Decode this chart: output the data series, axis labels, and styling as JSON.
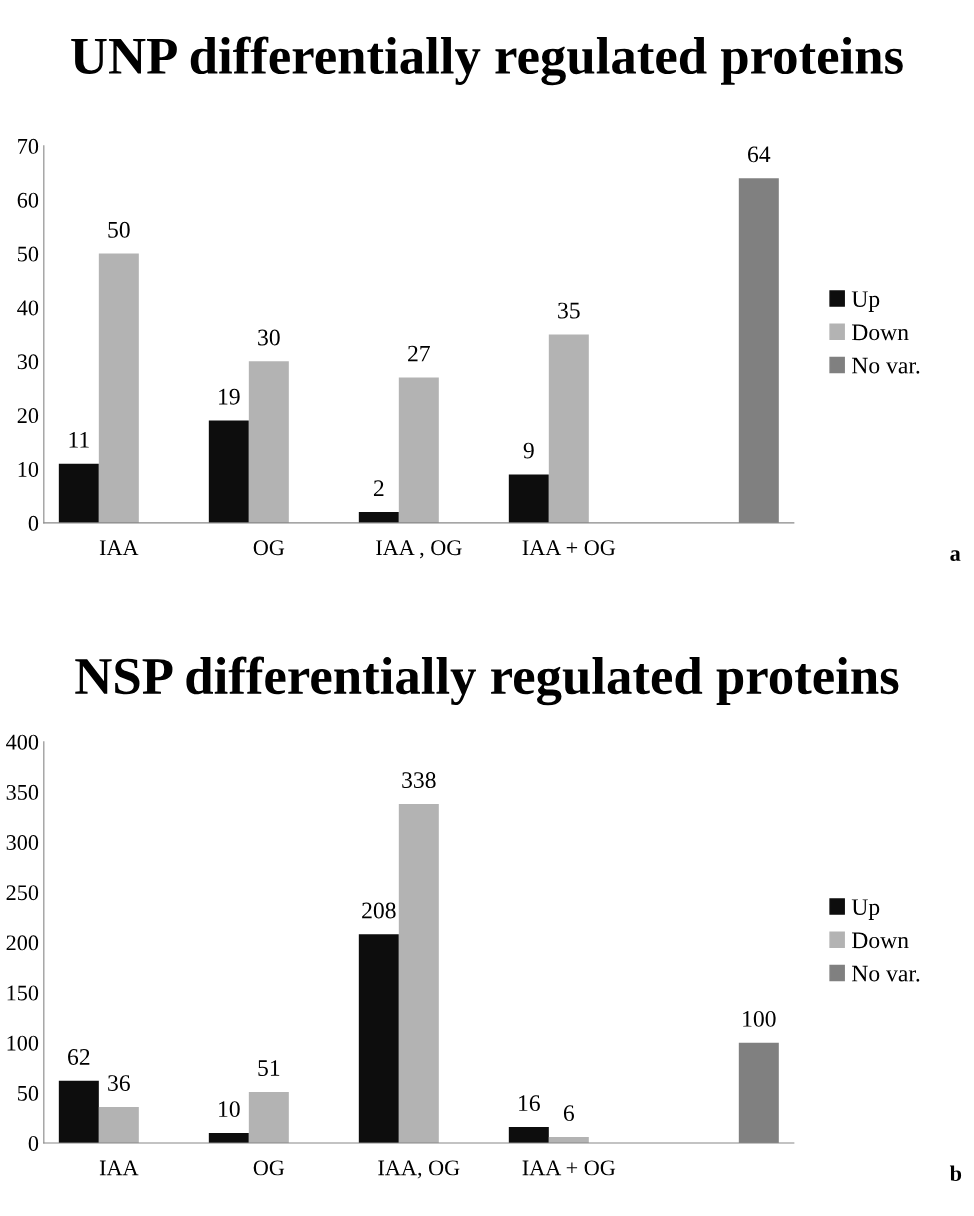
{
  "chart_data": [
    {
      "type": "bar",
      "title": "UNP differentially regulated proteins",
      "categories": [
        "IAA",
        "OG",
        "IAA , OG",
        "IAA + OG",
        null
      ],
      "series": [
        {
          "name": "Up",
          "color": "#0d0d0d",
          "values": [
            11,
            19,
            2,
            9,
            null
          ]
        },
        {
          "name": "Down",
          "color": "#b3b3b3",
          "values": [
            50,
            30,
            27,
            35,
            null
          ]
        },
        {
          "name": "No var.",
          "color": "#808080",
          "values": [
            null,
            null,
            null,
            null,
            64
          ]
        }
      ],
      "ylim": [
        0,
        70
      ],
      "yticks": [
        0,
        10,
        20,
        30,
        40,
        50,
        60,
        70
      ],
      "data_labels": true,
      "grid": false,
      "legend": "right",
      "annotations": [
        "a"
      ]
    },
    {
      "type": "bar",
      "title": "NSP differentially regulated proteins",
      "categories": [
        "IAA",
        "OG",
        "IAA, OG",
        "IAA + OG",
        null
      ],
      "series": [
        {
          "name": "Up",
          "color": "#0d0d0d",
          "values": [
            62,
            10,
            208,
            16,
            null
          ]
        },
        {
          "name": "Down",
          "color": "#b3b3b3",
          "values": [
            36,
            51,
            338,
            6,
            null
          ]
        },
        {
          "name": "No var.",
          "color": "#808080",
          "values": [
            null,
            null,
            null,
            null,
            100
          ]
        }
      ],
      "ylim": [
        0,
        400
      ],
      "yticks": [
        0,
        50,
        100,
        150,
        200,
        250,
        300,
        350,
        400
      ],
      "data_labels": true,
      "grid": false,
      "legend": "right",
      "annotations": [
        "b"
      ]
    }
  ]
}
